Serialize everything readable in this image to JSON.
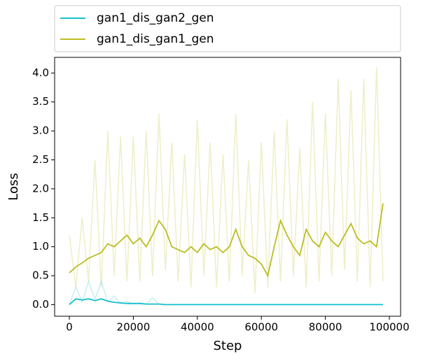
{
  "chart_data": {
    "type": "line",
    "xlabel": "Step",
    "ylabel": "Loss",
    "x": [
      0,
      2000,
      4000,
      6000,
      8000,
      10000,
      12000,
      14000,
      16000,
      18000,
      20000,
      22000,
      24000,
      26000,
      28000,
      30000,
      32000,
      34000,
      36000,
      38000,
      40000,
      42000,
      44000,
      46000,
      48000,
      50000,
      52000,
      54000,
      56000,
      58000,
      60000,
      62000,
      64000,
      66000,
      68000,
      70000,
      72000,
      74000,
      76000,
      78000,
      80000,
      82000,
      84000,
      86000,
      88000,
      90000,
      92000,
      94000,
      96000,
      98000
    ],
    "series": [
      {
        "name": "gan1_dis_gan2_gen",
        "color": "#17becf",
        "values": [
          0.0,
          0.1,
          0.08,
          0.1,
          0.07,
          0.1,
          0.06,
          0.04,
          0.03,
          0.02,
          0.02,
          0.02,
          0.01,
          0.01,
          0.01,
          0.0,
          0.0,
          0.0,
          0.0,
          0.0,
          0.0,
          0.0,
          0.0,
          0.0,
          0.0,
          0.0,
          0.0,
          0.0,
          0.0,
          0.0,
          0.0,
          0.0,
          0.0,
          0.0,
          0.0,
          0.0,
          0.0,
          0.0,
          0.0,
          0.0,
          0.0,
          0.0,
          0.0,
          0.0,
          0.0,
          0.0,
          0.0,
          0.0,
          0.0,
          0.0
        ],
        "raw_values": [
          0.0,
          0.3,
          0.05,
          0.4,
          0.1,
          0.4,
          0.05,
          0.15,
          0.02,
          0.05,
          0.02,
          0.03,
          0.01,
          0.12,
          0.01,
          0.0,
          0.0,
          0.0,
          0.0,
          0.0,
          0.0,
          0.0,
          0.0,
          0.0,
          0.0,
          0.0,
          0.0,
          0.0,
          0.0,
          0.0,
          0.0,
          0.0,
          0.0,
          0.0,
          0.0,
          0.0,
          0.0,
          0.0,
          0.0,
          0.0,
          0.0,
          0.0,
          0.0,
          0.0,
          0.0,
          0.0,
          0.0,
          0.0,
          0.0,
          0.0
        ]
      },
      {
        "name": "gan1_dis_gan1_gen",
        "color": "#bcbd22",
        "values": [
          0.55,
          0.65,
          0.72,
          0.8,
          0.85,
          0.9,
          1.05,
          1.0,
          1.1,
          1.2,
          1.05,
          1.15,
          1.0,
          1.2,
          1.45,
          1.3,
          1.0,
          0.95,
          0.9,
          1.0,
          0.9,
          1.05,
          0.95,
          1.0,
          0.9,
          1.0,
          1.3,
          1.0,
          0.85,
          0.8,
          0.7,
          0.5,
          1.0,
          1.45,
          1.2,
          1.0,
          0.85,
          1.3,
          1.1,
          1.0,
          1.25,
          1.1,
          1.0,
          1.2,
          1.4,
          1.15,
          1.05,
          1.1,
          1.0,
          1.75
        ],
        "raw_values": [
          1.2,
          0.3,
          1.5,
          0.4,
          2.5,
          0.3,
          3.0,
          0.5,
          2.9,
          0.4,
          2.9,
          0.4,
          3.0,
          0.5,
          3.3,
          0.6,
          2.8,
          0.4,
          2.6,
          0.3,
          3.2,
          0.5,
          2.8,
          0.3,
          2.6,
          0.4,
          3.3,
          0.5,
          2.5,
          0.2,
          2.8,
          0.3,
          3.0,
          0.4,
          3.2,
          0.5,
          2.7,
          0.3,
          3.5,
          0.4,
          3.3,
          0.5,
          3.9,
          0.6,
          3.7,
          0.4,
          3.9,
          0.3,
          4.1,
          0.4
        ]
      }
    ],
    "xlim": [
      -4600,
      103500
    ],
    "ylim": [
      -0.2,
      4.27
    ],
    "xticks": [
      0,
      20000,
      40000,
      60000,
      80000,
      100000
    ],
    "yticks": [
      {
        "value": 0,
        "label": "0.0"
      },
      0.5,
      {
        "value": 1,
        "label": "1.0"
      },
      1.5,
      {
        "value": 2,
        "label": "2.0"
      },
      2.5,
      {
        "value": 3,
        "label": "3.0"
      },
      3.5,
      {
        "value": 4,
        "label": "4.0"
      }
    ],
    "legend": "top"
  }
}
